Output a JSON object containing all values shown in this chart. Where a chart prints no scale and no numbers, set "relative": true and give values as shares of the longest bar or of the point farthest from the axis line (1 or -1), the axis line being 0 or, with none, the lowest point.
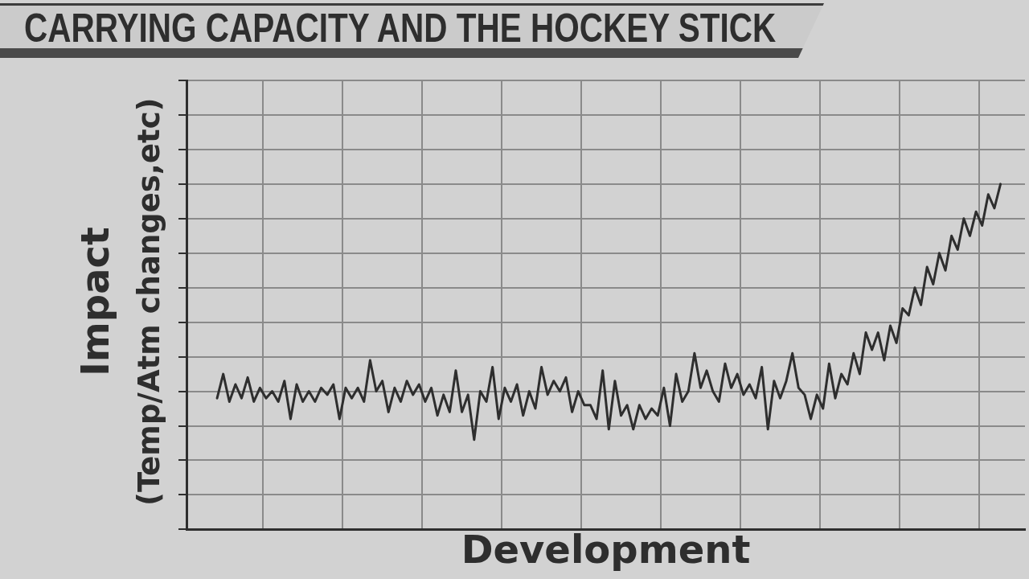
{
  "chart_data": {
    "type": "line",
    "title": "CARRYING CAPACITY AND THE HOCKEY STICK",
    "xlabel": "Development",
    "ylabel": "Impact\n(Temp/Atm changes,etc)",
    "relative": true,
    "grid": true,
    "color": "#2e2e2e",
    "categories": [
      null,
      null,
      null,
      null,
      null,
      null,
      null,
      null,
      null,
      null,
      null,
      null,
      null,
      null,
      null,
      null,
      null,
      null,
      null,
      null,
      null,
      null,
      null,
      null,
      null,
      null,
      null,
      null,
      null,
      null,
      null,
      null,
      null,
      null,
      null,
      null,
      null,
      null,
      null,
      null,
      null,
      null,
      null,
      null,
      null,
      null,
      null,
      null,
      null,
      null,
      null,
      null,
      null,
      null,
      null,
      null,
      null,
      null,
      null,
      null,
      null,
      null,
      null,
      null,
      null,
      null,
      null,
      null,
      null,
      null,
      null,
      null,
      null,
      null,
      null,
      null,
      null,
      null,
      null,
      null,
      null,
      null,
      null,
      null,
      null,
      null,
      null,
      null,
      null,
      null,
      null,
      null,
      null,
      null,
      null,
      null,
      null,
      null,
      null,
      null,
      null,
      null,
      null,
      null,
      null,
      null,
      null,
      null,
      null,
      null,
      null,
      null,
      null,
      null,
      null,
      null,
      null,
      null,
      null,
      null,
      null,
      null,
      null,
      null,
      null,
      null,
      null,
      null,
      null,
      null,
      null,
      null,
      null,
      null,
      null,
      null,
      null,
      null
    ],
    "values": [
      null,
      null,
      null,
      null,
      null,
      0.38,
      0.45,
      0.37,
      0.42,
      0.38,
      0.44,
      0.37,
      0.41,
      0.38,
      0.4,
      0.37,
      0.43,
      0.32,
      0.42,
      0.37,
      0.4,
      0.37,
      0.41,
      0.39,
      0.42,
      0.32,
      0.41,
      0.38,
      0.41,
      0.37,
      0.49,
      0.4,
      0.43,
      0.34,
      0.41,
      0.37,
      0.43,
      0.39,
      0.42,
      0.37,
      0.41,
      0.33,
      0.39,
      0.34,
      0.46,
      0.34,
      0.39,
      0.26,
      0.4,
      0.37,
      0.47,
      0.32,
      0.41,
      0.37,
      0.42,
      0.33,
      0.4,
      0.35,
      0.47,
      0.39,
      0.43,
      0.4,
      0.44,
      0.34,
      0.4,
      0.36,
      0.36,
      0.32,
      0.46,
      0.29,
      0.43,
      0.33,
      0.36,
      0.29,
      0.36,
      0.32,
      0.35,
      0.33,
      0.41,
      0.3,
      0.45,
      0.37,
      0.4,
      0.51,
      0.41,
      0.46,
      0.4,
      0.37,
      0.48,
      0.41,
      0.45,
      0.39,
      0.42,
      0.38,
      0.47,
      0.29,
      0.43,
      0.38,
      0.43,
      0.51,
      0.41,
      0.39,
      0.32,
      0.39,
      0.35,
      0.48,
      0.38,
      0.45,
      0.42,
      0.51,
      0.45,
      0.57,
      0.52,
      0.57,
      0.49,
      0.59,
      0.54,
      0.64,
      0.62,
      0.7,
      0.65,
      0.76,
      0.71,
      0.8,
      0.75,
      0.85,
      0.81,
      0.9,
      0.85,
      0.92,
      0.88,
      0.97,
      0.93,
      1,
      null,
      null,
      null,
      null
    ]
  }
}
